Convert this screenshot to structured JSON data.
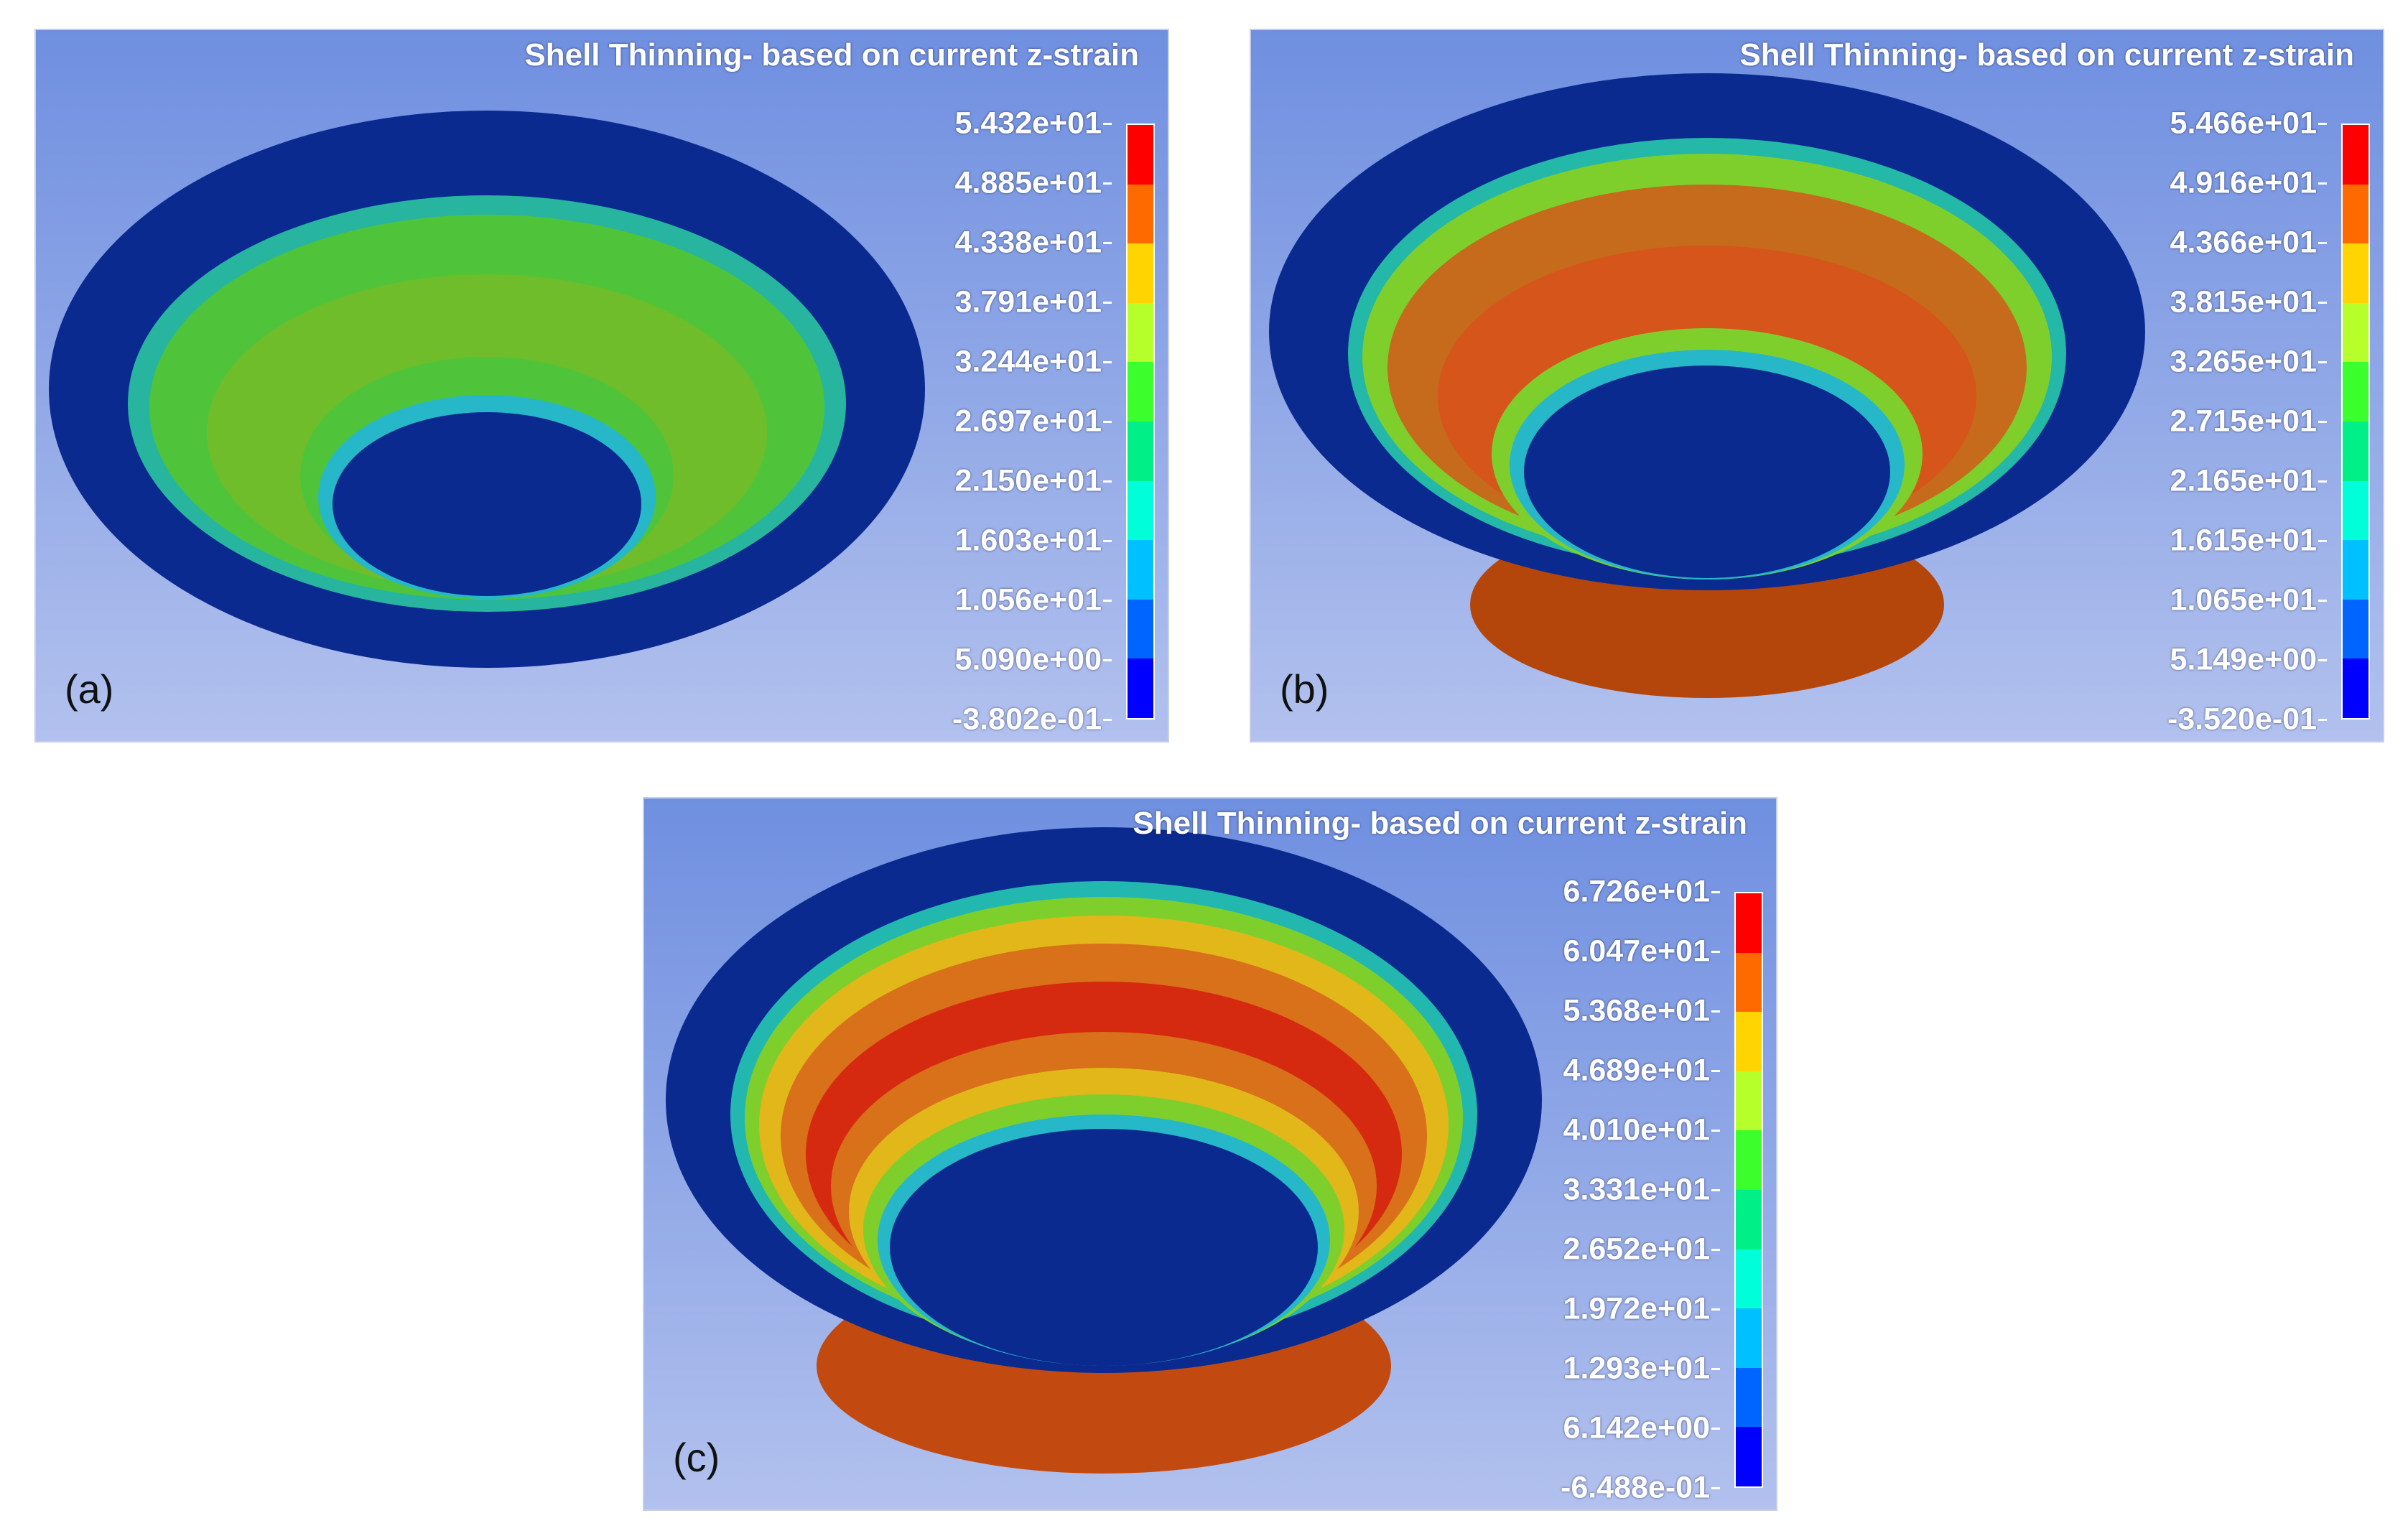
{
  "colorbar_colors": [
    "#ff0000",
    "#ff6a00",
    "#ffd400",
    "#b7ff2a",
    "#3cff2e",
    "#00f088",
    "#00ffd8",
    "#00c0ff",
    "#0064ff",
    "#0000ff"
  ],
  "panels": [
    {
      "id": "a",
      "label": "(a)",
      "title": "Shell Thinning- based on current z-strain",
      "ticks": [
        "5.432e+01",
        "4.885e+01",
        "4.338e+01",
        "3.791e+01",
        "3.244e+01",
        "2.697e+01",
        "2.150e+01",
        "1.603e+01",
        "1.056e+01",
        "5.090e+00",
        "-3.802e-01"
      ]
    },
    {
      "id": "b",
      "label": "(b)",
      "title": "Shell Thinning- based on current z-strain",
      "ticks": [
        "5.466e+01",
        "4.916e+01",
        "4.366e+01",
        "3.815e+01",
        "3.265e+01",
        "2.715e+01",
        "2.165e+01",
        "1.615e+01",
        "1.065e+01",
        "5.149e+00",
        "-3.520e-01"
      ]
    },
    {
      "id": "c",
      "label": "(c)",
      "title": "Shell Thinning- based on current z-strain",
      "ticks": [
        "6.726e+01",
        "6.047e+01",
        "5.368e+01",
        "4.689e+01",
        "4.010e+01",
        "3.331e+01",
        "2.652e+01",
        "1.972e+01",
        "1.293e+01",
        "6.142e+00",
        "-6.488e-01"
      ]
    }
  ]
}
